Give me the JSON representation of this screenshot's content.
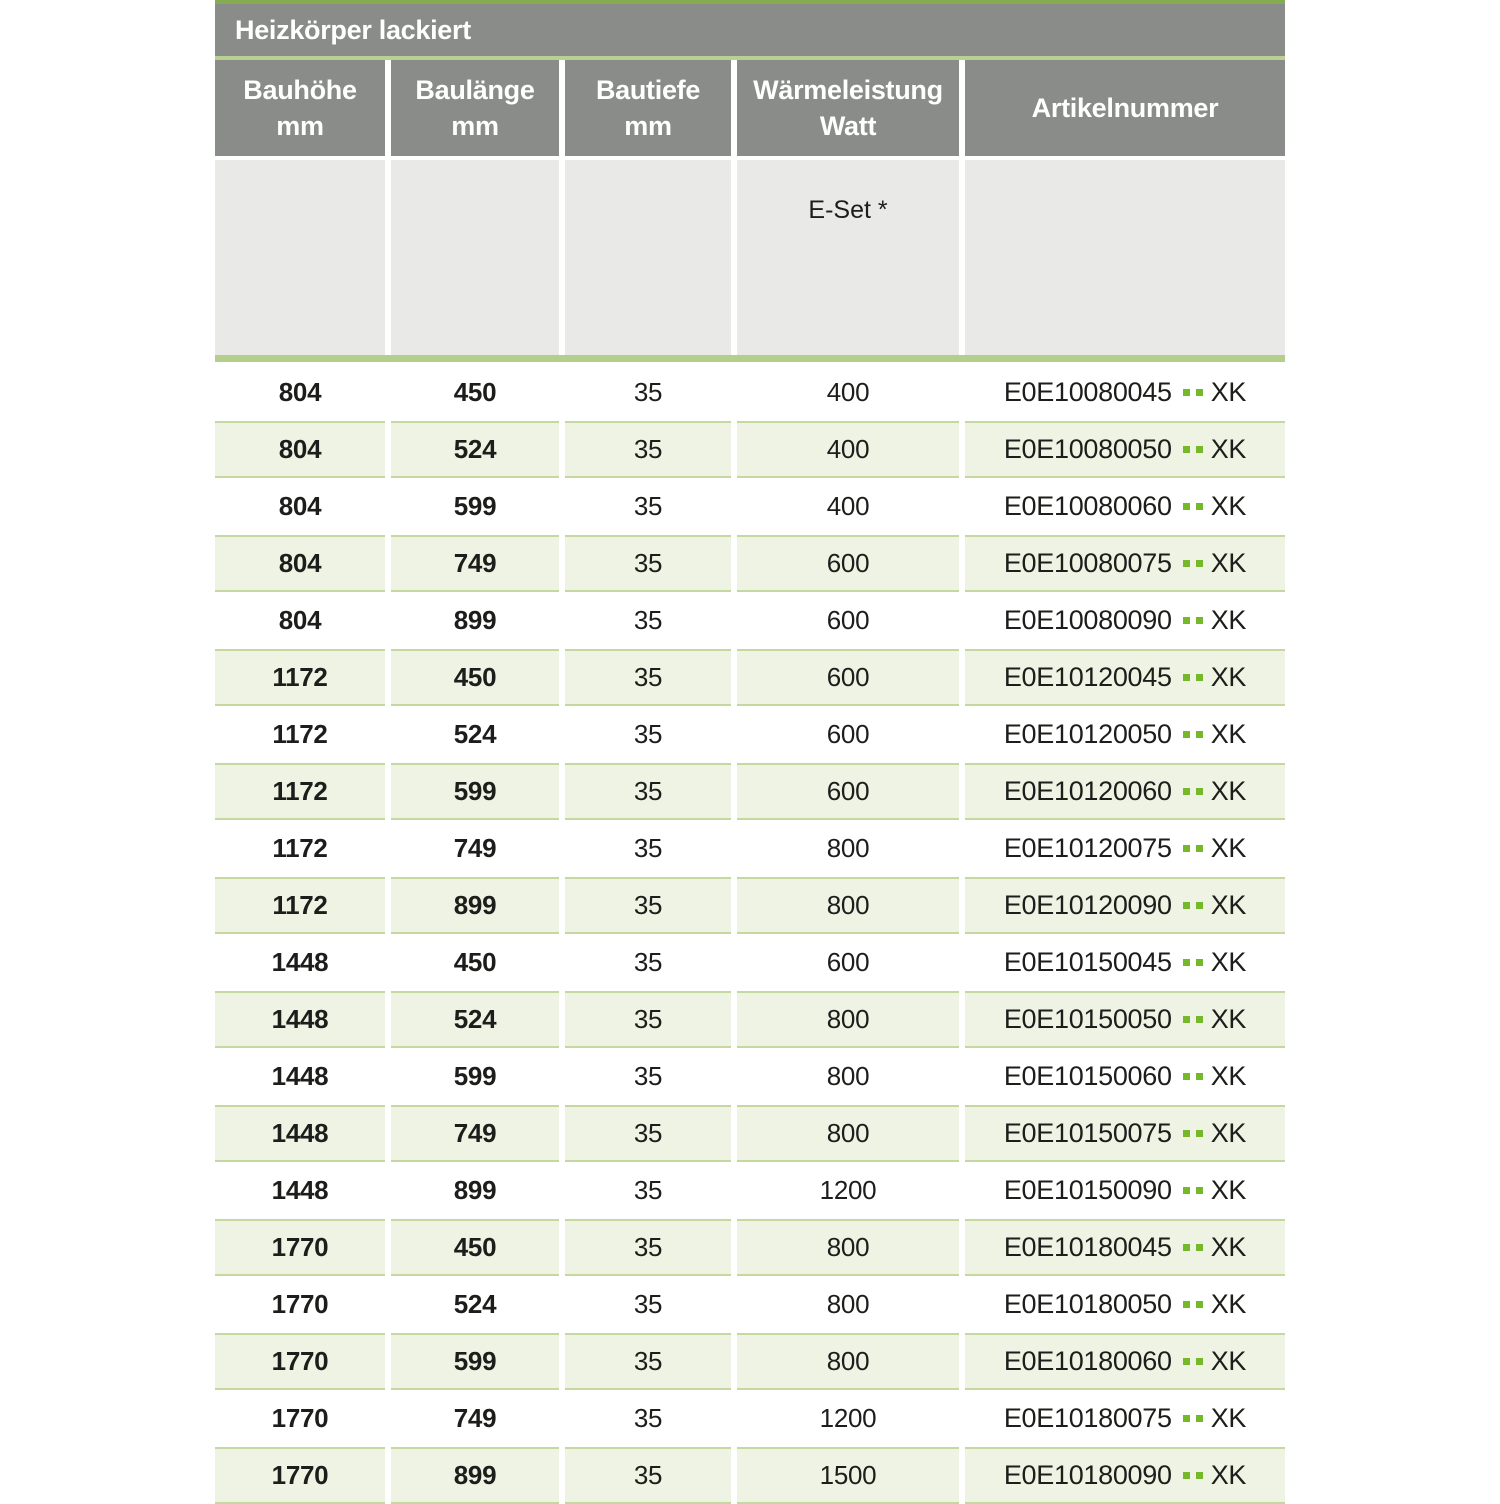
{
  "title": "Heizkörper lackiert",
  "columns": [
    {
      "label": "Bauhöhe",
      "unit": "mm",
      "subheader": ""
    },
    {
      "label": "Baulänge",
      "unit": "mm",
      "subheader": ""
    },
    {
      "label": "Bautiefe",
      "unit": "mm",
      "subheader": ""
    },
    {
      "label": "Wärmeleistung",
      "unit": "Watt",
      "subheader": "E-Set *"
    },
    {
      "label": "Artikelnummer",
      "unit": "",
      "subheader": ""
    }
  ],
  "article": {
    "dots": "..",
    "suffix": "XK"
  },
  "rows": [
    {
      "bauhoehe": "804",
      "baulaenge": "450",
      "bautiefe": "35",
      "waermeleistung": "400",
      "artikel_prefix": "E0E10080045"
    },
    {
      "bauhoehe": "804",
      "baulaenge": "524",
      "bautiefe": "35",
      "waermeleistung": "400",
      "artikel_prefix": "E0E10080050"
    },
    {
      "bauhoehe": "804",
      "baulaenge": "599",
      "bautiefe": "35",
      "waermeleistung": "400",
      "artikel_prefix": "E0E10080060"
    },
    {
      "bauhoehe": "804",
      "baulaenge": "749",
      "bautiefe": "35",
      "waermeleistung": "600",
      "artikel_prefix": "E0E10080075"
    },
    {
      "bauhoehe": "804",
      "baulaenge": "899",
      "bautiefe": "35",
      "waermeleistung": "600",
      "artikel_prefix": "E0E10080090"
    },
    {
      "bauhoehe": "1172",
      "baulaenge": "450",
      "bautiefe": "35",
      "waermeleistung": "600",
      "artikel_prefix": "E0E10120045"
    },
    {
      "bauhoehe": "1172",
      "baulaenge": "524",
      "bautiefe": "35",
      "waermeleistung": "600",
      "artikel_prefix": "E0E10120050"
    },
    {
      "bauhoehe": "1172",
      "baulaenge": "599",
      "bautiefe": "35",
      "waermeleistung": "600",
      "artikel_prefix": "E0E10120060"
    },
    {
      "bauhoehe": "1172",
      "baulaenge": "749",
      "bautiefe": "35",
      "waermeleistung": "800",
      "artikel_prefix": "E0E10120075"
    },
    {
      "bauhoehe": "1172",
      "baulaenge": "899",
      "bautiefe": "35",
      "waermeleistung": "800",
      "artikel_prefix": "E0E10120090"
    },
    {
      "bauhoehe": "1448",
      "baulaenge": "450",
      "bautiefe": "35",
      "waermeleistung": "600",
      "artikel_prefix": "E0E10150045"
    },
    {
      "bauhoehe": "1448",
      "baulaenge": "524",
      "bautiefe": "35",
      "waermeleistung": "800",
      "artikel_prefix": "E0E10150050"
    },
    {
      "bauhoehe": "1448",
      "baulaenge": "599",
      "bautiefe": "35",
      "waermeleistung": "800",
      "artikel_prefix": "E0E10150060"
    },
    {
      "bauhoehe": "1448",
      "baulaenge": "749",
      "bautiefe": "35",
      "waermeleistung": "800",
      "artikel_prefix": "E0E10150075"
    },
    {
      "bauhoehe": "1448",
      "baulaenge": "899",
      "bautiefe": "35",
      "waermeleistung": "1200",
      "artikel_prefix": "E0E10150090"
    },
    {
      "bauhoehe": "1770",
      "baulaenge": "450",
      "bautiefe": "35",
      "waermeleistung": "800",
      "artikel_prefix": "E0E10180045"
    },
    {
      "bauhoehe": "1770",
      "baulaenge": "524",
      "bautiefe": "35",
      "waermeleistung": "800",
      "artikel_prefix": "E0E10180050"
    },
    {
      "bauhoehe": "1770",
      "baulaenge": "599",
      "bautiefe": "35",
      "waermeleistung": "800",
      "artikel_prefix": "E0E10180060"
    },
    {
      "bauhoehe": "1770",
      "baulaenge": "749",
      "bautiefe": "35",
      "waermeleistung": "1200",
      "artikel_prefix": "E0E10180075"
    },
    {
      "bauhoehe": "1770",
      "baulaenge": "899",
      "bautiefe": "35",
      "waermeleistung": "1500",
      "artikel_prefix": "E0E10180090"
    }
  ],
  "colors": {
    "header_gray": "#8a8c89",
    "top_line_green": "#84ac53",
    "title_separator_green": "#b9d093",
    "subheader_gray": "#e9e9e8",
    "accent_bar_green": "#b4cf8c",
    "row_tint_green": "#eff3e4",
    "row_border_green": "#c5d89f",
    "dot_green": "#76b82a",
    "text_dark": "#1d1d1b",
    "header_text": "#ffffff"
  }
}
